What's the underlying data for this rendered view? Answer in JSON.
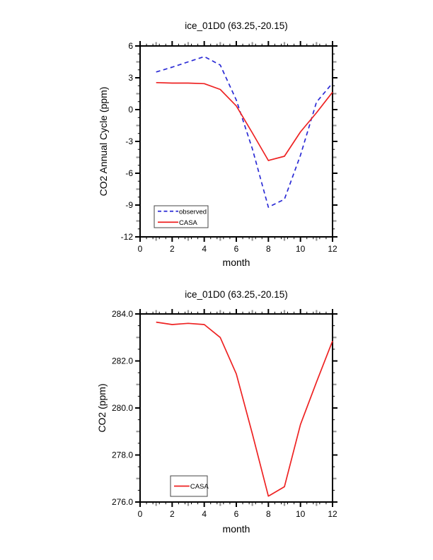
{
  "page": {
    "background": "#ffffff"
  },
  "chart_data": [
    {
      "type": "line",
      "title": "ice_01D0 (63.25,-20.15)",
      "xlabel": "month",
      "ylabel": "CO2 Annual Cycle (ppm)",
      "xlim": [
        0,
        12
      ],
      "ylim": [
        -12,
        6
      ],
      "xtick_values": [
        0,
        2,
        4,
        6,
        8,
        10,
        12
      ],
      "xtick_labels": [
        "0",
        "2",
        "4",
        "6",
        "8",
        "10",
        "12"
      ],
      "ytick_values": [
        6,
        3,
        0,
        -3,
        -6,
        -9,
        -12
      ],
      "ytick_labels": [
        "6",
        "3",
        "0",
        "-3",
        "-6",
        "-9",
        "-12"
      ],
      "x_axis_steps": {
        "major": 2,
        "medium": 1,
        "minor": 0.4
      },
      "y_axis_steps": {
        "major": 3,
        "medium": 1.5,
        "minor": 0.75
      },
      "grid": false,
      "legend_position": "bottom-left-inside",
      "x": [
        1,
        2,
        3,
        4,
        5,
        6,
        7,
        8,
        9,
        10,
        11,
        12
      ],
      "series": [
        {
          "name": "observed",
          "color": "#2b2bd5",
          "style": "dashed",
          "values": [
            3.55,
            4.0,
            4.5,
            5.0,
            4.2,
            0.9,
            -3.7,
            -9.2,
            -8.45,
            -4.3,
            0.7,
            2.5
          ]
        },
        {
          "name": "CASA",
          "color": "#ee2222",
          "style": "solid",
          "values": [
            2.55,
            2.5,
            2.5,
            2.45,
            1.9,
            0.35,
            -2.2,
            -4.8,
            -4.4,
            -2.1,
            -0.3,
            1.65
          ]
        }
      ]
    },
    {
      "type": "line",
      "title": "ice_01D0 (63.25,-20.15)",
      "xlabel": "month",
      "ylabel": "CO2 (ppm)",
      "xlim": [
        0,
        12
      ],
      "ylim": [
        276,
        284
      ],
      "xtick_values": [
        0,
        2,
        4,
        6,
        8,
        10,
        12
      ],
      "xtick_labels": [
        "0",
        "2",
        "4",
        "6",
        "8",
        "10",
        "12"
      ],
      "ytick_values": [
        284,
        282,
        280,
        278,
        276
      ],
      "ytick_labels": [
        "284.0",
        "282.0",
        "280.0",
        "278.0",
        "276.0"
      ],
      "x_axis_steps": {
        "major": 2,
        "medium": 1,
        "minor": 0.4
      },
      "y_axis_steps": {
        "major": 2,
        "medium": 1,
        "minor": 0.5
      },
      "grid": false,
      "legend_position": "bottom-left-inside",
      "x": [
        1,
        2,
        3,
        4,
        5,
        6,
        7,
        8,
        9,
        10,
        11,
        12
      ],
      "series": [
        {
          "name": "CASA",
          "color": "#ee2222",
          "style": "solid",
          "values": [
            283.65,
            283.55,
            283.6,
            283.55,
            283.0,
            281.45,
            278.9,
            276.25,
            276.65,
            279.3,
            281.1,
            282.85
          ]
        }
      ]
    }
  ],
  "colors": {
    "axis": "#000000",
    "medium_tick": "#999999",
    "observed_line": "#2b2bd5",
    "casa_line": "#ee2222",
    "legend_border": "#444444"
  }
}
